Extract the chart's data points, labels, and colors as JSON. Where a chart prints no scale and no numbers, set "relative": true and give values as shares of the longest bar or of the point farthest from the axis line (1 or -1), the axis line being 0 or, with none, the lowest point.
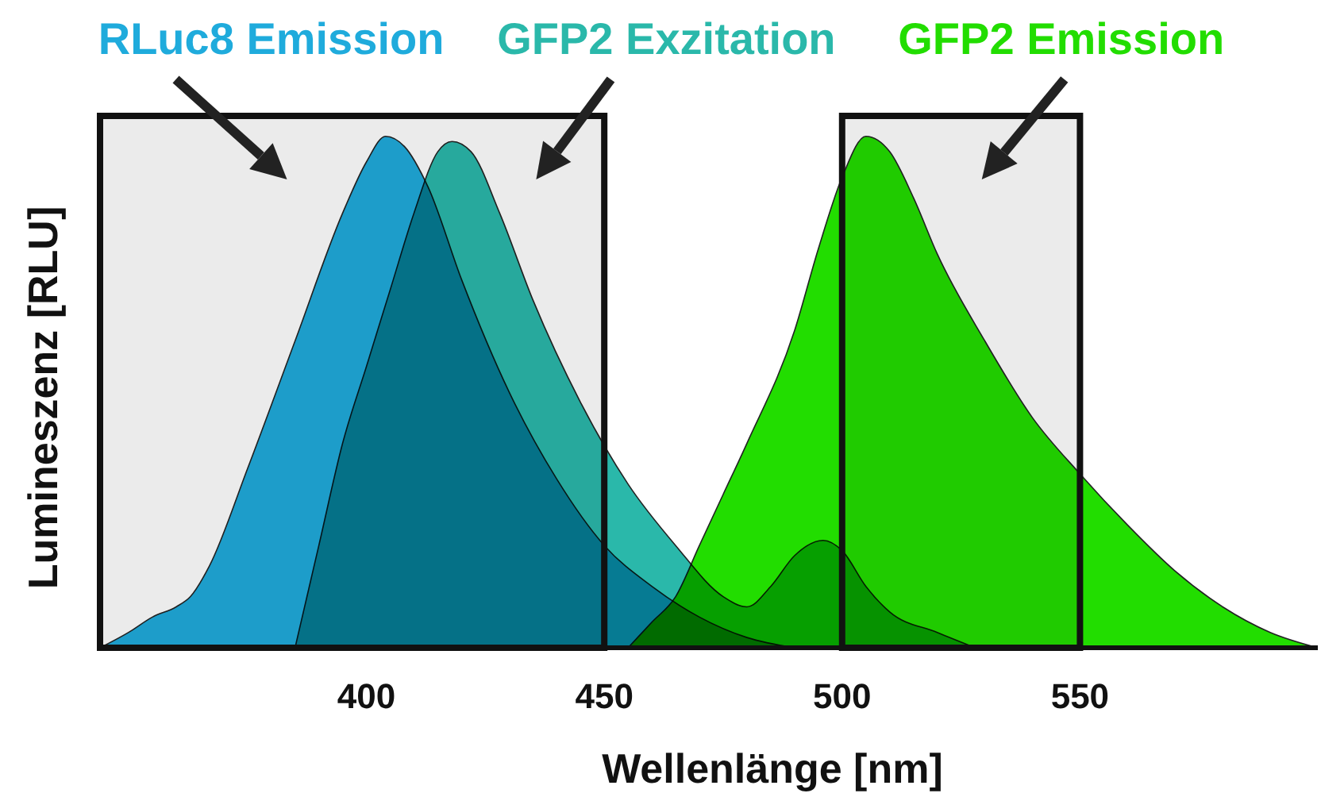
{
  "chart_data": {
    "type": "area",
    "relative": true,
    "xlabel": "Wellenlänge [nm]",
    "ylabel": "Lumineszenz [RLU]",
    "xlim": [
      344,
      600
    ],
    "xticks": [
      400,
      450,
      500,
      550
    ],
    "grid": false,
    "legend": false,
    "bands": [
      {
        "axis": "x",
        "from": 344,
        "to": 450,
        "color": "#ebebeb"
      },
      {
        "axis": "x",
        "from": 500,
        "to": 550,
        "color": "#ebebeb"
      }
    ],
    "series": [
      {
        "name": "RLuc8 Emission",
        "color": "#1fabdc",
        "x": [
          344,
          350,
          355,
          360,
          363,
          367,
          375,
          385,
          395,
          400,
          404,
          408,
          413,
          420,
          430,
          440,
          450,
          460,
          470,
          480,
          490
        ],
        "values": [
          0,
          0.03,
          0.06,
          0.08,
          0.1,
          0.16,
          0.35,
          0.6,
          0.85,
          0.95,
          1,
          0.98,
          0.9,
          0.72,
          0.5,
          0.33,
          0.2,
          0.12,
          0.06,
          0.02,
          0
        ]
      },
      {
        "name": "GFP2 Exzitation",
        "color": "#2ab8aa",
        "x": [
          385,
          390,
          395,
          400,
          405,
          410,
          415,
          418,
          422,
          428,
          435,
          445,
          455,
          465,
          475,
          480,
          485,
          490,
          496,
          500,
          505,
          510,
          520,
          528
        ],
        "values": [
          0,
          0.2,
          0.4,
          0.55,
          0.7,
          0.85,
          0.97,
          0.99,
          0.97,
          0.85,
          0.68,
          0.48,
          0.32,
          0.2,
          0.1,
          0.08,
          0.12,
          0.18,
          0.21,
          0.19,
          0.12,
          0.07,
          0.03,
          0
        ]
      },
      {
        "name": "GFP2 Emission",
        "color": "#22dd00",
        "x": [
          455,
          460,
          465,
          470,
          475,
          480,
          490,
          495,
          500,
          505,
          510,
          515,
          520,
          530,
          540,
          550,
          560,
          570,
          580,
          590,
          600
        ],
        "values": [
          0,
          0.05,
          0.1,
          0.2,
          0.3,
          0.4,
          0.62,
          0.78,
          0.92,
          1,
          0.97,
          0.88,
          0.77,
          0.6,
          0.45,
          0.34,
          0.24,
          0.15,
          0.08,
          0.03,
          0
        ]
      }
    ]
  }
}
